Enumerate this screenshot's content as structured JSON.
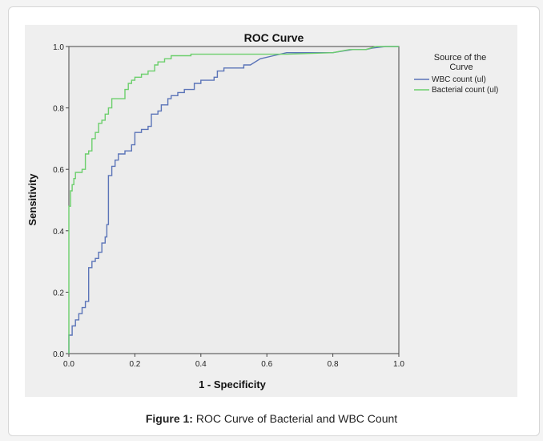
{
  "chart_data": {
    "type": "line",
    "title": "ROC Curve",
    "xlabel": "1 - Specificity",
    "ylabel": "Sensitivity",
    "xlim": [
      0,
      1
    ],
    "ylim": [
      0,
      1
    ],
    "xticks": [
      "0.0",
      "0.2",
      "0.4",
      "0.6",
      "0.8",
      "1.0"
    ],
    "yticks": [
      "0.0",
      "0.2",
      "0.4",
      "0.6",
      "0.8",
      "1.0"
    ],
    "legend": {
      "title": "Source of the Curve",
      "position": "right"
    },
    "grid": false,
    "series": [
      {
        "name": "WBC count (ul)",
        "color": "#5b74b8",
        "points": [
          [
            0,
            0
          ],
          [
            0,
            0.06
          ],
          [
            0.01,
            0.06
          ],
          [
            0.01,
            0.09
          ],
          [
            0.02,
            0.09
          ],
          [
            0.02,
            0.11
          ],
          [
            0.03,
            0.11
          ],
          [
            0.03,
            0.13
          ],
          [
            0.04,
            0.13
          ],
          [
            0.04,
            0.15
          ],
          [
            0.05,
            0.15
          ],
          [
            0.05,
            0.17
          ],
          [
            0.06,
            0.17
          ],
          [
            0.06,
            0.28
          ],
          [
            0.07,
            0.28
          ],
          [
            0.07,
            0.3
          ],
          [
            0.08,
            0.3
          ],
          [
            0.08,
            0.31
          ],
          [
            0.09,
            0.31
          ],
          [
            0.09,
            0.33
          ],
          [
            0.1,
            0.33
          ],
          [
            0.1,
            0.36
          ],
          [
            0.11,
            0.36
          ],
          [
            0.11,
            0.38
          ],
          [
            0.115,
            0.38
          ],
          [
            0.115,
            0.42
          ],
          [
            0.12,
            0.42
          ],
          [
            0.12,
            0.58
          ],
          [
            0.13,
            0.58
          ],
          [
            0.13,
            0.61
          ],
          [
            0.14,
            0.61
          ],
          [
            0.14,
            0.63
          ],
          [
            0.15,
            0.63
          ],
          [
            0.15,
            0.65
          ],
          [
            0.17,
            0.65
          ],
          [
            0.17,
            0.66
          ],
          [
            0.19,
            0.66
          ],
          [
            0.19,
            0.68
          ],
          [
            0.2,
            0.68
          ],
          [
            0.2,
            0.72
          ],
          [
            0.22,
            0.72
          ],
          [
            0.22,
            0.73
          ],
          [
            0.24,
            0.73
          ],
          [
            0.24,
            0.74
          ],
          [
            0.25,
            0.74
          ],
          [
            0.25,
            0.78
          ],
          [
            0.27,
            0.78
          ],
          [
            0.27,
            0.79
          ],
          [
            0.28,
            0.79
          ],
          [
            0.28,
            0.81
          ],
          [
            0.3,
            0.81
          ],
          [
            0.3,
            0.83
          ],
          [
            0.31,
            0.83
          ],
          [
            0.31,
            0.84
          ],
          [
            0.33,
            0.84
          ],
          [
            0.33,
            0.85
          ],
          [
            0.35,
            0.85
          ],
          [
            0.35,
            0.86
          ],
          [
            0.38,
            0.86
          ],
          [
            0.38,
            0.88
          ],
          [
            0.4,
            0.88
          ],
          [
            0.4,
            0.89
          ],
          [
            0.44,
            0.89
          ],
          [
            0.44,
            0.9
          ],
          [
            0.45,
            0.9
          ],
          [
            0.45,
            0.92
          ],
          [
            0.47,
            0.92
          ],
          [
            0.47,
            0.93
          ],
          [
            0.53,
            0.93
          ],
          [
            0.53,
            0.94
          ],
          [
            0.55,
            0.94
          ],
          [
            0.58,
            0.96
          ],
          [
            0.62,
            0.97
          ],
          [
            0.66,
            0.98
          ],
          [
            0.8,
            0.98
          ],
          [
            0.83,
            0.985
          ],
          [
            0.86,
            0.99
          ],
          [
            0.9,
            0.99
          ],
          [
            0.92,
            0.995
          ],
          [
            0.96,
            1.0
          ],
          [
            1.0,
            1.0
          ]
        ]
      },
      {
        "name": "Bacterial count (ul)",
        "color": "#6ccf6c",
        "points": [
          [
            0,
            0
          ],
          [
            0,
            0.48
          ],
          [
            0.005,
            0.48
          ],
          [
            0.005,
            0.53
          ],
          [
            0.01,
            0.53
          ],
          [
            0.01,
            0.55
          ],
          [
            0.015,
            0.55
          ],
          [
            0.015,
            0.57
          ],
          [
            0.02,
            0.57
          ],
          [
            0.02,
            0.59
          ],
          [
            0.04,
            0.59
          ],
          [
            0.04,
            0.6
          ],
          [
            0.05,
            0.6
          ],
          [
            0.05,
            0.65
          ],
          [
            0.06,
            0.65
          ],
          [
            0.06,
            0.66
          ],
          [
            0.07,
            0.66
          ],
          [
            0.07,
            0.7
          ],
          [
            0.08,
            0.7
          ],
          [
            0.08,
            0.72
          ],
          [
            0.09,
            0.72
          ],
          [
            0.09,
            0.75
          ],
          [
            0.1,
            0.75
          ],
          [
            0.1,
            0.76
          ],
          [
            0.11,
            0.76
          ],
          [
            0.11,
            0.78
          ],
          [
            0.12,
            0.78
          ],
          [
            0.12,
            0.8
          ],
          [
            0.13,
            0.8
          ],
          [
            0.13,
            0.83
          ],
          [
            0.17,
            0.83
          ],
          [
            0.17,
            0.86
          ],
          [
            0.18,
            0.86
          ],
          [
            0.18,
            0.88
          ],
          [
            0.19,
            0.88
          ],
          [
            0.19,
            0.89
          ],
          [
            0.2,
            0.89
          ],
          [
            0.2,
            0.9
          ],
          [
            0.22,
            0.9
          ],
          [
            0.22,
            0.91
          ],
          [
            0.24,
            0.91
          ],
          [
            0.24,
            0.92
          ],
          [
            0.26,
            0.92
          ],
          [
            0.26,
            0.94
          ],
          [
            0.27,
            0.94
          ],
          [
            0.27,
            0.95
          ],
          [
            0.29,
            0.95
          ],
          [
            0.29,
            0.96
          ],
          [
            0.31,
            0.96
          ],
          [
            0.31,
            0.97
          ],
          [
            0.37,
            0.97
          ],
          [
            0.37,
            0.975
          ],
          [
            0.5,
            0.975
          ],
          [
            0.6,
            0.975
          ],
          [
            0.63,
            0.975
          ],
          [
            0.66,
            0.975
          ],
          [
            0.8,
            0.98
          ],
          [
            0.85,
            0.99
          ],
          [
            0.9,
            0.99
          ],
          [
            0.93,
            1.0
          ],
          [
            1.0,
            1.0
          ]
        ]
      }
    ]
  },
  "figure_caption": {
    "label": "Figure 1:",
    "text": " ROC Curve of Bacterial and WBC Count"
  }
}
